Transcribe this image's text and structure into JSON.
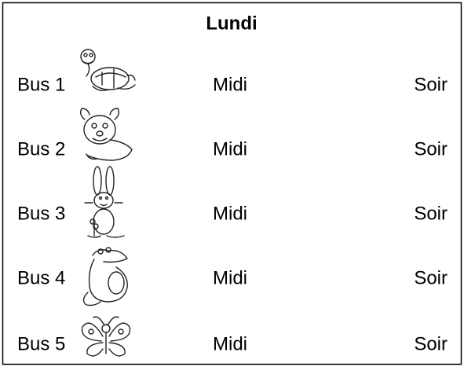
{
  "title": "Lundi",
  "rows": [
    {
      "bus": "Bus 1",
      "midi": "Midi",
      "soir": "Soir"
    },
    {
      "bus": "Bus 2",
      "midi": "Midi",
      "soir": "Soir"
    },
    {
      "bus": "Bus 3",
      "midi": "Midi",
      "soir": "Soir"
    },
    {
      "bus": "Bus 4",
      "midi": "Midi",
      "soir": "Soir"
    },
    {
      "bus": "Bus 5",
      "midi": "Midi",
      "soir": "Soir"
    }
  ]
}
